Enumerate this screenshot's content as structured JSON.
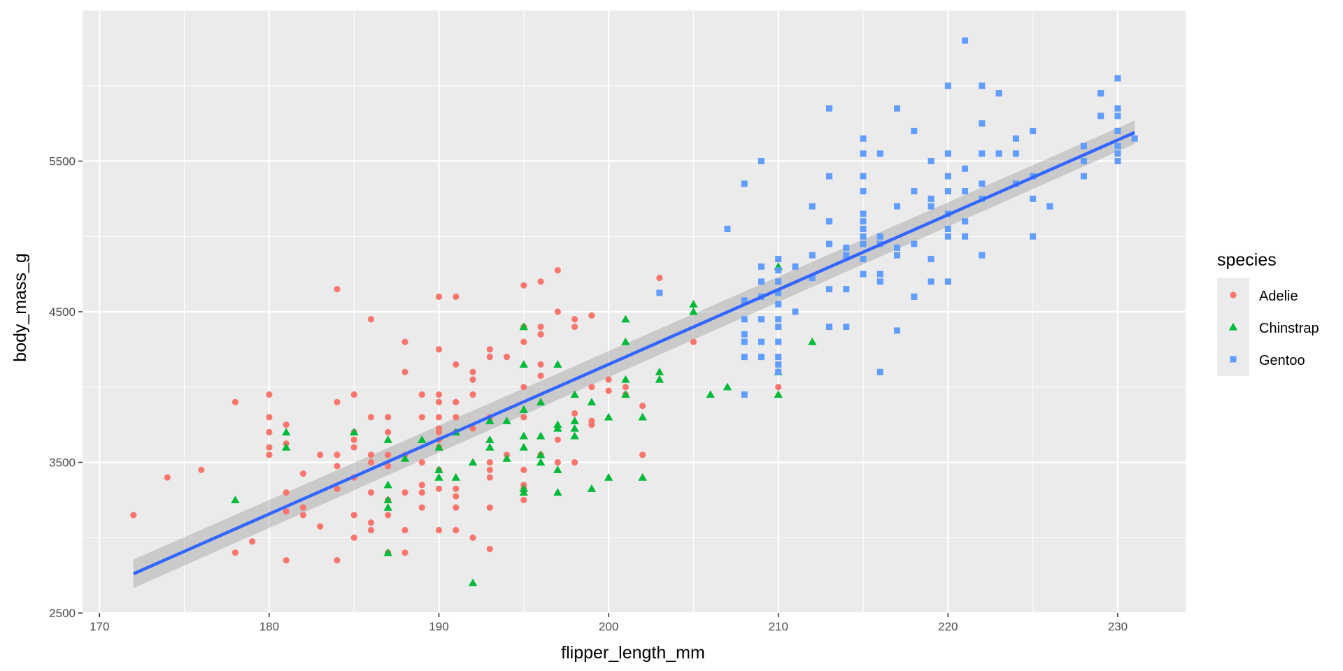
{
  "chart_data": {
    "type": "scatter",
    "title": "",
    "xlabel": "flipper_length_mm",
    "ylabel": "body_mass_g",
    "xlim": [
      169,
      234
    ],
    "ylim": [
      2500,
      6500
    ],
    "x_ticks": [
      170,
      180,
      190,
      200,
      210,
      220,
      230
    ],
    "y_ticks": [
      2500,
      3500,
      4500,
      5500
    ],
    "grid": true,
    "legend": {
      "title": "species",
      "position": "right"
    },
    "series": [
      {
        "name": "Adelie",
        "color": "#F8766D",
        "shape": "circle",
        "points": [
          [
            172,
            3150
          ],
          [
            174,
            3400
          ],
          [
            176,
            3450
          ],
          [
            178,
            3900
          ],
          [
            178,
            2900
          ],
          [
            179,
            2975
          ],
          [
            180,
            3950
          ],
          [
            180,
            3800
          ],
          [
            180,
            3700
          ],
          [
            180,
            3600
          ],
          [
            180,
            3550
          ],
          [
            181,
            3750
          ],
          [
            181,
            3625
          ],
          [
            181,
            3300
          ],
          [
            181,
            3175
          ],
          [
            181,
            2850
          ],
          [
            182,
            3425
          ],
          [
            182,
            3200
          ],
          [
            182,
            3150
          ],
          [
            183,
            3550
          ],
          [
            183,
            3075
          ],
          [
            184,
            4650
          ],
          [
            184,
            3900
          ],
          [
            184,
            3550
          ],
          [
            184,
            3475
          ],
          [
            184,
            3325
          ],
          [
            184,
            2850
          ],
          [
            185,
            3950
          ],
          [
            185,
            3700
          ],
          [
            185,
            3650
          ],
          [
            185,
            3600
          ],
          [
            185,
            3400
          ],
          [
            185,
            3150
          ],
          [
            185,
            3000
          ],
          [
            186,
            4450
          ],
          [
            186,
            3800
          ],
          [
            186,
            3550
          ],
          [
            186,
            3500
          ],
          [
            186,
            3300
          ],
          [
            186,
            3100
          ],
          [
            186,
            3050
          ],
          [
            187,
            3800
          ],
          [
            187,
            3700
          ],
          [
            187,
            3550
          ],
          [
            187,
            3475
          ],
          [
            187,
            3250
          ],
          [
            187,
            3150
          ],
          [
            187,
            2900
          ],
          [
            188,
            4300
          ],
          [
            188,
            4100
          ],
          [
            188,
            3550
          ],
          [
            188,
            3300
          ],
          [
            188,
            3050
          ],
          [
            188,
            2900
          ],
          [
            189,
            3950
          ],
          [
            189,
            3800
          ],
          [
            189,
            3500
          ],
          [
            189,
            3350
          ],
          [
            189,
            3300
          ],
          [
            189,
            3200
          ],
          [
            190,
            4600
          ],
          [
            190,
            4250
          ],
          [
            190,
            3950
          ],
          [
            190,
            3900
          ],
          [
            190,
            3800
          ],
          [
            190,
            3725
          ],
          [
            190,
            3700
          ],
          [
            190,
            3650
          ],
          [
            190,
            3600
          ],
          [
            190,
            3450
          ],
          [
            190,
            3325
          ],
          [
            190,
            3050
          ],
          [
            191,
            4600
          ],
          [
            191,
            4150
          ],
          [
            191,
            3900
          ],
          [
            191,
            3800
          ],
          [
            191,
            3700
          ],
          [
            191,
            3325
          ],
          [
            191,
            3275
          ],
          [
            191,
            3200
          ],
          [
            191,
            3050
          ],
          [
            192,
            4100
          ],
          [
            192,
            4050
          ],
          [
            192,
            3950
          ],
          [
            192,
            3725
          ],
          [
            192,
            3000
          ],
          [
            193,
            4250
          ],
          [
            193,
            4200
          ],
          [
            193,
            3800
          ],
          [
            193,
            3500
          ],
          [
            193,
            3450
          ],
          [
            193,
            3400
          ],
          [
            193,
            3200
          ],
          [
            193,
            2925
          ],
          [
            194,
            4200
          ],
          [
            194,
            3550
          ],
          [
            195,
            4675
          ],
          [
            195,
            4400
          ],
          [
            195,
            4300
          ],
          [
            195,
            4000
          ],
          [
            195,
            3800
          ],
          [
            195,
            3450
          ],
          [
            195,
            3350
          ],
          [
            195,
            3325
          ],
          [
            195,
            3250
          ],
          [
            196,
            4700
          ],
          [
            196,
            4400
          ],
          [
            196,
            4350
          ],
          [
            196,
            4150
          ],
          [
            196,
            4075
          ],
          [
            196,
            3550
          ],
          [
            197,
            4775
          ],
          [
            197,
            4500
          ],
          [
            197,
            3650
          ],
          [
            197,
            3500
          ],
          [
            198,
            4450
          ],
          [
            198,
            4400
          ],
          [
            198,
            3825
          ],
          [
            198,
            3500
          ],
          [
            199,
            4475
          ],
          [
            199,
            4000
          ],
          [
            199,
            3775
          ],
          [
            199,
            3750
          ],
          [
            200,
            4050
          ],
          [
            200,
            3975
          ],
          [
            201,
            4000
          ],
          [
            201,
            3950
          ],
          [
            202,
            3875
          ],
          [
            202,
            3550
          ],
          [
            203,
            4725
          ],
          [
            205,
            4300
          ],
          [
            210,
            4000
          ]
        ]
      },
      {
        "name": "Chinstrap",
        "color": "#00BA38",
        "shape": "triangle",
        "points": [
          [
            178,
            3250
          ],
          [
            181,
            3700
          ],
          [
            181,
            3600
          ],
          [
            185,
            3700
          ],
          [
            187,
            3650
          ],
          [
            187,
            3350
          ],
          [
            187,
            3250
          ],
          [
            187,
            3200
          ],
          [
            187,
            2900
          ],
          [
            188,
            3525
          ],
          [
            189,
            3650
          ],
          [
            190,
            3600
          ],
          [
            190,
            3450
          ],
          [
            190,
            3400
          ],
          [
            191,
            3700
          ],
          [
            191,
            3400
          ],
          [
            192,
            3500
          ],
          [
            192,
            2700
          ],
          [
            193,
            3775
          ],
          [
            193,
            3650
          ],
          [
            193,
            3600
          ],
          [
            194,
            3775
          ],
          [
            194,
            3525
          ],
          [
            195,
            4400
          ],
          [
            195,
            4150
          ],
          [
            195,
            3850
          ],
          [
            195,
            3675
          ],
          [
            195,
            3600
          ],
          [
            195,
            3325
          ],
          [
            195,
            3300
          ],
          [
            196,
            3900
          ],
          [
            196,
            3675
          ],
          [
            196,
            3550
          ],
          [
            196,
            3500
          ],
          [
            197,
            4150
          ],
          [
            197,
            3750
          ],
          [
            197,
            3725
          ],
          [
            197,
            3450
          ],
          [
            197,
            3300
          ],
          [
            198,
            3950
          ],
          [
            198,
            3725
          ],
          [
            198,
            3675
          ],
          [
            198,
            3775
          ],
          [
            199,
            3900
          ],
          [
            199,
            3325
          ],
          [
            200,
            3800
          ],
          [
            200,
            3400
          ],
          [
            201,
            4450
          ],
          [
            201,
            4300
          ],
          [
            201,
            4050
          ],
          [
            201,
            3950
          ],
          [
            202,
            3800
          ],
          [
            202,
            3400
          ],
          [
            203,
            4100
          ],
          [
            203,
            4050
          ],
          [
            205,
            4550
          ],
          [
            205,
            4500
          ],
          [
            206,
            3950
          ],
          [
            207,
            4000
          ],
          [
            210,
            4800
          ],
          [
            210,
            4100
          ],
          [
            210,
            3950
          ],
          [
            212,
            4300
          ]
        ]
      },
      {
        "name": "Gentoo",
        "color": "#619CFF",
        "shape": "square",
        "points": [
          [
            203,
            4625
          ],
          [
            207,
            5050
          ],
          [
            208,
            5350
          ],
          [
            208,
            4575
          ],
          [
            208,
            4450
          ],
          [
            208,
            4350
          ],
          [
            208,
            4300
          ],
          [
            208,
            4200
          ],
          [
            208,
            3950
          ],
          [
            209,
            5500
          ],
          [
            209,
            4800
          ],
          [
            209,
            4700
          ],
          [
            209,
            4600
          ],
          [
            209,
            4450
          ],
          [
            209,
            4300
          ],
          [
            209,
            4200
          ],
          [
            210,
            4850
          ],
          [
            210,
            4775
          ],
          [
            210,
            4700
          ],
          [
            210,
            4625
          ],
          [
            210,
            4550
          ],
          [
            210,
            4450
          ],
          [
            210,
            4400
          ],
          [
            210,
            4300
          ],
          [
            210,
            4200
          ],
          [
            210,
            4150
          ],
          [
            210,
            4100
          ],
          [
            211,
            4800
          ],
          [
            211,
            4500
          ],
          [
            212,
            5200
          ],
          [
            212,
            4875
          ],
          [
            212,
            4725
          ],
          [
            213,
            5850
          ],
          [
            213,
            5400
          ],
          [
            213,
            5100
          ],
          [
            213,
            4950
          ],
          [
            213,
            4650
          ],
          [
            213,
            4400
          ],
          [
            214,
            4925
          ],
          [
            214,
            4875
          ],
          [
            214,
            4650
          ],
          [
            214,
            4400
          ],
          [
            215,
            5650
          ],
          [
            215,
            5550
          ],
          [
            215,
            5400
          ],
          [
            215,
            5300
          ],
          [
            215,
            5150
          ],
          [
            215,
            5100
          ],
          [
            215,
            5050
          ],
          [
            215,
            5000
          ],
          [
            215,
            4950
          ],
          [
            215,
            4850
          ],
          [
            215,
            4750
          ],
          [
            216,
            5550
          ],
          [
            216,
            5000
          ],
          [
            216,
            4950
          ],
          [
            216,
            4750
          ],
          [
            216,
            4700
          ],
          [
            216,
            4100
          ],
          [
            217,
            5850
          ],
          [
            217,
            5200
          ],
          [
            217,
            4925
          ],
          [
            217,
            4875
          ],
          [
            217,
            4375
          ],
          [
            218,
            5700
          ],
          [
            218,
            5300
          ],
          [
            218,
            4950
          ],
          [
            218,
            4600
          ],
          [
            219,
            5500
          ],
          [
            219,
            5250
          ],
          [
            219,
            5200
          ],
          [
            219,
            4850
          ],
          [
            219,
            4700
          ],
          [
            220,
            6000
          ],
          [
            220,
            5550
          ],
          [
            220,
            5400
          ],
          [
            220,
            5300
          ],
          [
            220,
            5150
          ],
          [
            220,
            5050
          ],
          [
            220,
            5000
          ],
          [
            220,
            4700
          ],
          [
            221,
            6300
          ],
          [
            221,
            5450
          ],
          [
            221,
            5300
          ],
          [
            221,
            5100
          ],
          [
            221,
            5000
          ],
          [
            222,
            6000
          ],
          [
            222,
            5750
          ],
          [
            222,
            5550
          ],
          [
            222,
            5350
          ],
          [
            222,
            5250
          ],
          [
            222,
            4875
          ],
          [
            223,
            5950
          ],
          [
            223,
            5550
          ],
          [
            224,
            5650
          ],
          [
            224,
            5550
          ],
          [
            224,
            5350
          ],
          [
            225,
            5700
          ],
          [
            225,
            5400
          ],
          [
            225,
            5250
          ],
          [
            225,
            5000
          ],
          [
            226,
            5200
          ],
          [
            228,
            5600
          ],
          [
            228,
            5500
          ],
          [
            228,
            5400
          ],
          [
            229,
            5950
          ],
          [
            229,
            5800
          ],
          [
            230,
            6050
          ],
          [
            230,
            5850
          ],
          [
            230,
            5800
          ],
          [
            230,
            5700
          ],
          [
            230,
            5600
          ],
          [
            230,
            5550
          ],
          [
            230,
            5500
          ],
          [
            231,
            5650
          ]
        ]
      }
    ],
    "trend": {
      "name": "linear fit",
      "color": "#3366FF",
      "x": [
        172,
        231
      ],
      "y": [
        2760,
        5690
      ],
      "band_lower": [
        2665,
        5615
      ],
      "band_upper": [
        2855,
        5770
      ],
      "band_color": "#999999"
    }
  }
}
